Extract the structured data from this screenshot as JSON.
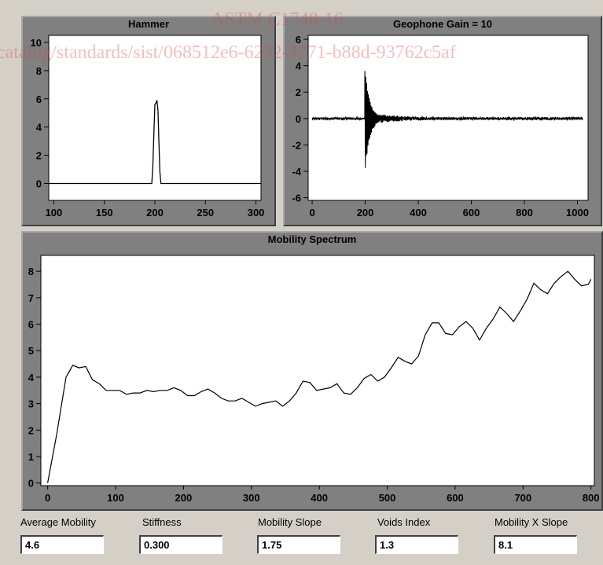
{
  "watermark": {
    "line1": "ASTM C1740-16",
    "line2": "catalog/standards/sist/068512e6-6232-4771-b88d-93762c5af"
  },
  "chart_data": [
    {
      "type": "line",
      "title": "Hammer",
      "xlim": [
        95,
        305
      ],
      "ylim": [
        -1.2,
        10.5
      ],
      "xticks": [
        100,
        150,
        200,
        250,
        300
      ],
      "yticks": [
        0,
        2,
        4,
        6,
        8,
        10
      ],
      "series": [
        {
          "x": [
            95,
            197,
            198,
            199,
            200,
            201,
            202,
            203,
            204,
            205,
            206,
            305
          ],
          "y": [
            0,
            0,
            1.2,
            3.5,
            5.6,
            5.7,
            5.9,
            5.2,
            3.0,
            0.8,
            0,
            0
          ]
        }
      ]
    },
    {
      "type": "line",
      "title": "Geophone Gain = 10",
      "xlim": [
        -15,
        1040
      ],
      "ylim": [
        -6.2,
        6.3
      ],
      "xticks": [
        0,
        200,
        400,
        600,
        800,
        1000
      ],
      "yticks": [
        -6,
        -4,
        -2,
        0,
        2,
        4,
        6
      ],
      "decay_start_x": 198,
      "peak_positive": 4.1,
      "peak_negative": -4.3
    },
    {
      "type": "line",
      "title": "Mobility Spectrum",
      "xlim": [
        -10,
        805
      ],
      "ylim": [
        -0.1,
        8.6
      ],
      "xticks": [
        0,
        100,
        200,
        300,
        400,
        500,
        600,
        700,
        800
      ],
      "yticks": [
        0,
        1,
        2,
        3,
        4,
        5,
        6,
        7,
        8
      ],
      "series": [
        {
          "x": [
            0,
            13,
            27,
            37,
            46,
            56,
            66,
            76,
            86,
            96,
            106,
            116,
            126,
            136,
            146,
            156,
            166,
            176,
            186,
            196,
            206,
            216,
            226,
            236,
            246,
            256,
            266,
            276,
            286,
            296,
            306,
            316,
            326,
            336,
            346,
            356,
            366,
            376,
            386,
            396,
            406,
            416,
            426,
            436,
            446,
            456,
            466,
            476,
            486,
            496,
            506,
            516,
            526,
            536,
            546,
            556,
            566,
            576,
            586,
            596,
            606,
            616,
            626,
            636,
            646,
            656,
            666,
            676,
            686,
            696,
            706,
            716,
            726,
            736,
            746,
            756,
            766,
            776,
            786,
            796,
            800
          ],
          "y": [
            0,
            1.8,
            4.0,
            4.45,
            4.35,
            4.4,
            3.9,
            3.75,
            3.5,
            3.5,
            3.5,
            3.35,
            3.4,
            3.4,
            3.5,
            3.45,
            3.5,
            3.5,
            3.6,
            3.5,
            3.3,
            3.3,
            3.45,
            3.55,
            3.4,
            3.2,
            3.1,
            3.1,
            3.2,
            3.05,
            2.9,
            3.0,
            3.05,
            3.1,
            2.9,
            3.1,
            3.4,
            3.85,
            3.8,
            3.5,
            3.55,
            3.6,
            3.75,
            3.4,
            3.35,
            3.6,
            3.95,
            4.1,
            3.85,
            4.0,
            4.35,
            4.75,
            4.6,
            4.5,
            4.8,
            5.6,
            6.05,
            6.05,
            5.65,
            5.6,
            5.9,
            6.1,
            5.85,
            5.4,
            5.85,
            6.2,
            6.65,
            6.4,
            6.1,
            6.5,
            6.95,
            7.55,
            7.3,
            7.15,
            7.55,
            7.8,
            8.0,
            7.7,
            7.45,
            7.5,
            7.7
          ]
        }
      ]
    }
  ],
  "fields": [
    {
      "label": "Average Mobility",
      "value": "4.6"
    },
    {
      "label": "Stiffness",
      "value": "0.300"
    },
    {
      "label": "Mobility Slope",
      "value": "1.75"
    },
    {
      "label": "Voids Index",
      "value": "1.3"
    },
    {
      "label": "Mobility X Slope",
      "value": "8.1"
    }
  ]
}
